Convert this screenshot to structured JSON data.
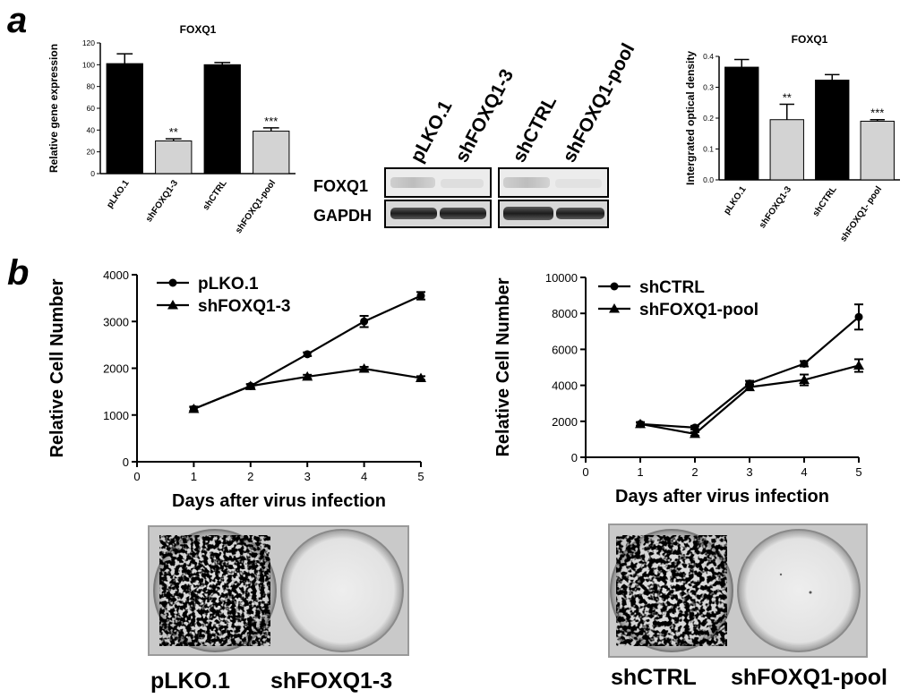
{
  "panel_labels": {
    "a": "a",
    "b": "b"
  },
  "charts": {
    "bar1": {
      "type": "bar",
      "title": "FOXQ1",
      "ylabel": "Relative gene expression",
      "categories": [
        "pLKO.1",
        "shFOXQ1-3",
        "shCTRL",
        "shFOXQ1-pool"
      ],
      "values": [
        101,
        30,
        100,
        39
      ],
      "errors": [
        9,
        2,
        2,
        3
      ],
      "colors": [
        "#000000",
        "#d3d3d3",
        "#000000",
        "#d3d3d3"
      ],
      "significance": [
        "",
        "**",
        "",
        "***"
      ],
      "yticks": [
        0,
        20,
        40,
        60,
        80,
        100,
        120
      ],
      "ylim": [
        0,
        120
      ]
    },
    "bar2": {
      "type": "bar",
      "title": "FOXQ1",
      "ylabel": "Intergrated optical density",
      "categories": [
        "pLKO.1",
        "shFOXQ1-3",
        "shCTRL",
        "shFOXQ1- pool"
      ],
      "values": [
        0.365,
        0.195,
        0.323,
        0.19
      ],
      "errors": [
        0.025,
        0.05,
        0.018,
        0.005
      ],
      "colors": [
        "#000000",
        "#d3d3d3",
        "#000000",
        "#d3d3d3"
      ],
      "significance": [
        "",
        "**",
        "",
        "***"
      ],
      "yticks": [
        "0.0",
        "0.1",
        "0.2",
        "0.3",
        "0.4"
      ],
      "ylim": [
        0,
        0.4
      ]
    },
    "line1": {
      "type": "line",
      "xlabel": "Days after virus infection",
      "ylabel": "Relative Cell Number",
      "xticks": [
        0,
        1,
        2,
        3,
        4,
        5
      ],
      "yticks": [
        0,
        1000,
        2000,
        3000,
        4000
      ],
      "xlim": [
        0,
        5
      ],
      "ylim": [
        0,
        4000
      ],
      "series": [
        {
          "name": "pLKO.1",
          "marker": "circle",
          "x": [
            1,
            2,
            3,
            4,
            5
          ],
          "y": [
            1130,
            1620,
            2300,
            3000,
            3550
          ],
          "err": [
            50,
            40,
            40,
            120,
            80
          ]
        },
        {
          "name": "shFOXQ1-3",
          "marker": "triangle",
          "x": [
            1,
            2,
            3,
            4,
            5
          ],
          "y": [
            1130,
            1620,
            1820,
            1990,
            1790
          ],
          "err": [
            40,
            40,
            40,
            40,
            40
          ]
        }
      ]
    },
    "line2": {
      "type": "line",
      "xlabel": "Days after virus infection",
      "ylabel": "Relative Cell Number",
      "xticks": [
        0,
        1,
        2,
        3,
        4,
        5
      ],
      "yticks": [
        0,
        2000,
        4000,
        6000,
        8000,
        10000
      ],
      "xlim": [
        0,
        5
      ],
      "ylim": [
        0,
        10000
      ],
      "series": [
        {
          "name": "shCTRL",
          "marker": "circle",
          "x": [
            1,
            2,
            3,
            4,
            5
          ],
          "y": [
            1850,
            1650,
            4100,
            5200,
            7800
          ],
          "err": [
            100,
            100,
            150,
            150,
            700
          ]
        },
        {
          "name": "shFOXQ1-pool",
          "marker": "triangle",
          "x": [
            1,
            2,
            3,
            4,
            5
          ],
          "y": [
            1850,
            1300,
            3900,
            4300,
            5100
          ],
          "err": [
            100,
            100,
            150,
            300,
            350
          ]
        }
      ]
    }
  },
  "western_blot": {
    "lanes": [
      "pLKO.1",
      "shFOXQ1-3",
      "shCTRL",
      "shFOXQ1-pool"
    ],
    "rows": [
      "FOXQ1",
      "GAPDH"
    ]
  },
  "colony_labels": {
    "left": [
      "pLKO.1",
      "shFOXQ1-3"
    ],
    "right": [
      "shCTRL",
      "shFOXQ1-pool"
    ]
  }
}
